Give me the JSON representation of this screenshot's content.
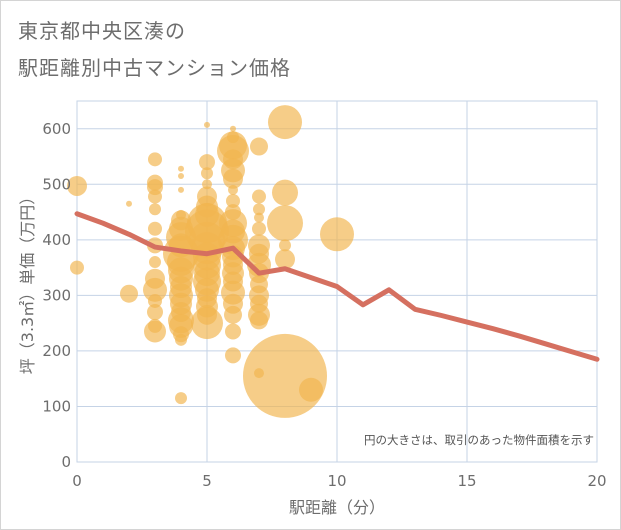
{
  "title_line1": "東京都中央区湊の",
  "title_line2": "駅距離別中古マンション価格",
  "chart_data": {
    "type": "scatter",
    "xlabel": "駅距離（分）",
    "ylabel": "坪（3.3㎡）単価（万円）",
    "xlim": [
      0,
      20
    ],
    "ylim": [
      0,
      650
    ],
    "x_ticks": [
      "0",
      "5",
      "10",
      "15",
      "20"
    ],
    "y_ticks": [
      "0",
      "100",
      "200",
      "300",
      "400",
      "500",
      "600"
    ],
    "grid": true,
    "bubble_note": "円の大きさは、取引のあった物件面積を示す",
    "colors": {
      "bubble": "#f2b550",
      "line": "#d57060",
      "grid": "#c5d3e6"
    },
    "line_series": {
      "x": [
        0,
        1,
        2,
        3,
        4,
        5,
        6,
        7,
        8,
        9,
        10,
        11,
        12,
        13,
        14,
        15,
        16,
        17,
        18,
        19,
        20
      ],
      "y": [
        447,
        430,
        410,
        387,
        380,
        375,
        385,
        340,
        348,
        332,
        316,
        283,
        310,
        275,
        264,
        252,
        240,
        227,
        213,
        199,
        185
      ]
    },
    "bubbles": [
      {
        "x": 0,
        "y": 497,
        "s": 10
      },
      {
        "x": 0,
        "y": 350,
        "s": 7
      },
      {
        "x": 2,
        "y": 465,
        "s": 3
      },
      {
        "x": 2,
        "y": 303,
        "s": 9
      },
      {
        "x": 3,
        "y": 545,
        "s": 7
      },
      {
        "x": 3,
        "y": 503,
        "s": 8
      },
      {
        "x": 3,
        "y": 495,
        "s": 8
      },
      {
        "x": 3,
        "y": 478,
        "s": 7
      },
      {
        "x": 3,
        "y": 455,
        "s": 6
      },
      {
        "x": 3,
        "y": 420,
        "s": 7
      },
      {
        "x": 3,
        "y": 390,
        "s": 8
      },
      {
        "x": 3,
        "y": 360,
        "s": 6
      },
      {
        "x": 3,
        "y": 330,
        "s": 10
      },
      {
        "x": 3,
        "y": 310,
        "s": 12
      },
      {
        "x": 3,
        "y": 290,
        "s": 7
      },
      {
        "x": 3,
        "y": 270,
        "s": 8
      },
      {
        "x": 3,
        "y": 245,
        "s": 7
      },
      {
        "x": 3,
        "y": 235,
        "s": 11
      },
      {
        "x": 4,
        "y": 528,
        "s": 3
      },
      {
        "x": 4,
        "y": 515,
        "s": 3
      },
      {
        "x": 4,
        "y": 490,
        "s": 3
      },
      {
        "x": 4,
        "y": 445,
        "s": 5
      },
      {
        "x": 4,
        "y": 435,
        "s": 10
      },
      {
        "x": 4,
        "y": 420,
        "s": 12
      },
      {
        "x": 4,
        "y": 405,
        "s": 15
      },
      {
        "x": 4,
        "y": 390,
        "s": 12
      },
      {
        "x": 4,
        "y": 375,
        "s": 18
      },
      {
        "x": 4,
        "y": 360,
        "s": 14
      },
      {
        "x": 4,
        "y": 345,
        "s": 13
      },
      {
        "x": 4,
        "y": 330,
        "s": 12
      },
      {
        "x": 4,
        "y": 315,
        "s": 11
      },
      {
        "x": 4,
        "y": 300,
        "s": 12
      },
      {
        "x": 4,
        "y": 285,
        "s": 11
      },
      {
        "x": 4,
        "y": 270,
        "s": 10
      },
      {
        "x": 4,
        "y": 255,
        "s": 13
      },
      {
        "x": 4,
        "y": 245,
        "s": 12
      },
      {
        "x": 4,
        "y": 230,
        "s": 8
      },
      {
        "x": 4,
        "y": 220,
        "s": 6
      },
      {
        "x": 4,
        "y": 115,
        "s": 6
      },
      {
        "x": 5,
        "y": 607,
        "s": 3
      },
      {
        "x": 5,
        "y": 540,
        "s": 8
      },
      {
        "x": 5,
        "y": 520,
        "s": 6
      },
      {
        "x": 5,
        "y": 500,
        "s": 5
      },
      {
        "x": 5,
        "y": 478,
        "s": 10
      },
      {
        "x": 5,
        "y": 460,
        "s": 11
      },
      {
        "x": 5,
        "y": 445,
        "s": 12
      },
      {
        "x": 5,
        "y": 430,
        "s": 20
      },
      {
        "x": 5,
        "y": 415,
        "s": 22
      },
      {
        "x": 5,
        "y": 400,
        "s": 18
      },
      {
        "x": 5,
        "y": 385,
        "s": 16
      },
      {
        "x": 5,
        "y": 370,
        "s": 14
      },
      {
        "x": 5,
        "y": 355,
        "s": 14
      },
      {
        "x": 5,
        "y": 340,
        "s": 13
      },
      {
        "x": 5,
        "y": 325,
        "s": 14
      },
      {
        "x": 5,
        "y": 310,
        "s": 12
      },
      {
        "x": 5,
        "y": 295,
        "s": 10
      },
      {
        "x": 5,
        "y": 280,
        "s": 11
      },
      {
        "x": 5,
        "y": 265,
        "s": 10
      },
      {
        "x": 5,
        "y": 250,
        "s": 16
      },
      {
        "x": 6,
        "y": 600,
        "s": 3
      },
      {
        "x": 6,
        "y": 585,
        "s": 6
      },
      {
        "x": 6,
        "y": 570,
        "s": 14
      },
      {
        "x": 6,
        "y": 560,
        "s": 16
      },
      {
        "x": 6,
        "y": 545,
        "s": 10
      },
      {
        "x": 6,
        "y": 525,
        "s": 12
      },
      {
        "x": 6,
        "y": 510,
        "s": 10
      },
      {
        "x": 6,
        "y": 490,
        "s": 5
      },
      {
        "x": 6,
        "y": 470,
        "s": 7
      },
      {
        "x": 6,
        "y": 450,
        "s": 8
      },
      {
        "x": 6,
        "y": 430,
        "s": 14
      },
      {
        "x": 6,
        "y": 415,
        "s": 12
      },
      {
        "x": 6,
        "y": 400,
        "s": 15
      },
      {
        "x": 6,
        "y": 385,
        "s": 12
      },
      {
        "x": 6,
        "y": 370,
        "s": 11
      },
      {
        "x": 6,
        "y": 355,
        "s": 10
      },
      {
        "x": 6,
        "y": 340,
        "s": 11
      },
      {
        "x": 6,
        "y": 325,
        "s": 10
      },
      {
        "x": 6,
        "y": 305,
        "s": 12
      },
      {
        "x": 6,
        "y": 285,
        "s": 10
      },
      {
        "x": 6,
        "y": 265,
        "s": 9
      },
      {
        "x": 6,
        "y": 235,
        "s": 8
      },
      {
        "x": 6,
        "y": 192,
        "s": 8
      },
      {
        "x": 7,
        "y": 568,
        "s": 9
      },
      {
        "x": 7,
        "y": 478,
        "s": 7
      },
      {
        "x": 7,
        "y": 455,
        "s": 6
      },
      {
        "x": 7,
        "y": 440,
        "s": 5
      },
      {
        "x": 7,
        "y": 420,
        "s": 7
      },
      {
        "x": 7,
        "y": 390,
        "s": 11
      },
      {
        "x": 7,
        "y": 375,
        "s": 10
      },
      {
        "x": 7,
        "y": 355,
        "s": 12
      },
      {
        "x": 7,
        "y": 340,
        "s": 10
      },
      {
        "x": 7,
        "y": 320,
        "s": 9
      },
      {
        "x": 7,
        "y": 300,
        "s": 10
      },
      {
        "x": 7,
        "y": 285,
        "s": 9
      },
      {
        "x": 7,
        "y": 265,
        "s": 11
      },
      {
        "x": 7,
        "y": 255,
        "s": 9
      },
      {
        "x": 7,
        "y": 160,
        "s": 5
      },
      {
        "x": 8,
        "y": 612,
        "s": 17
      },
      {
        "x": 8,
        "y": 485,
        "s": 13
      },
      {
        "x": 8,
        "y": 430,
        "s": 18
      },
      {
        "x": 8,
        "y": 390,
        "s": 6
      },
      {
        "x": 8,
        "y": 365,
        "s": 10
      },
      {
        "x": 8,
        "y": 155,
        "s": 42
      },
      {
        "x": 9,
        "y": 130,
        "s": 12
      },
      {
        "x": 10,
        "y": 410,
        "s": 17
      }
    ]
  }
}
